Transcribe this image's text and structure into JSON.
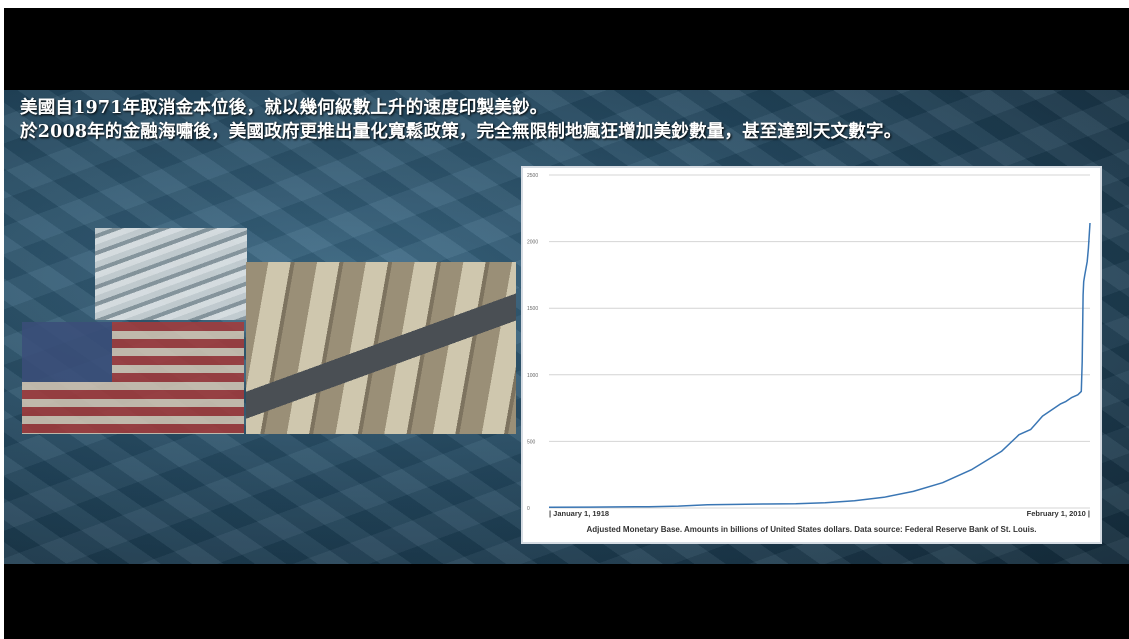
{
  "headline": {
    "line1": "美國自1971年取消金本位後，就以幾何級數上升的速度印製美鈔。",
    "line2": "於2008年的金融海嘯後，美國政府更推出量化寬鬆政策，完全無限制地瘋狂增加美鈔數量，甚至達到天文數字。"
  },
  "chart_data": {
    "type": "line",
    "title": "",
    "xlabel": "",
    "ylabel": "",
    "ylim": [
      0,
      2500
    ],
    "yticks": [
      "0",
      "500",
      "1000",
      "1500",
      "2000",
      "2500"
    ],
    "x_start_label": "| January 1, 1918",
    "x_end_label": "February 1, 2010 |",
    "caption": "Adjusted Monetary Base.  Amounts in billions of United States dollars.  Data source: Federal Reserve Bank of St. Louis.",
    "line_color": "#3a76b4",
    "series": [
      {
        "name": "",
        "x": [
          1918,
          1925,
          1930,
          1935,
          1940,
          1945,
          1950,
          1955,
          1960,
          1965,
          1970,
          1975,
          1980,
          1985,
          1990,
          1995,
          1998,
          2000,
          2001,
          2002,
          2003,
          2004,
          2005,
          2006,
          2007,
          2008.0,
          2008.6,
          2008.75,
          2008.9,
          2009.0,
          2009.2,
          2009.4,
          2009.6,
          2009.8,
          2010.08
        ],
        "y": [
          5,
          7,
          8,
          10,
          14,
          24,
          27,
          30,
          32,
          40,
          55,
          80,
          125,
          190,
          290,
          425,
          550,
          590,
          640,
          690,
          720,
          750,
          780,
          800,
          830,
          850,
          875,
          1100,
          1600,
          1700,
          1750,
          1800,
          1850,
          1950,
          2140
        ]
      }
    ]
  }
}
